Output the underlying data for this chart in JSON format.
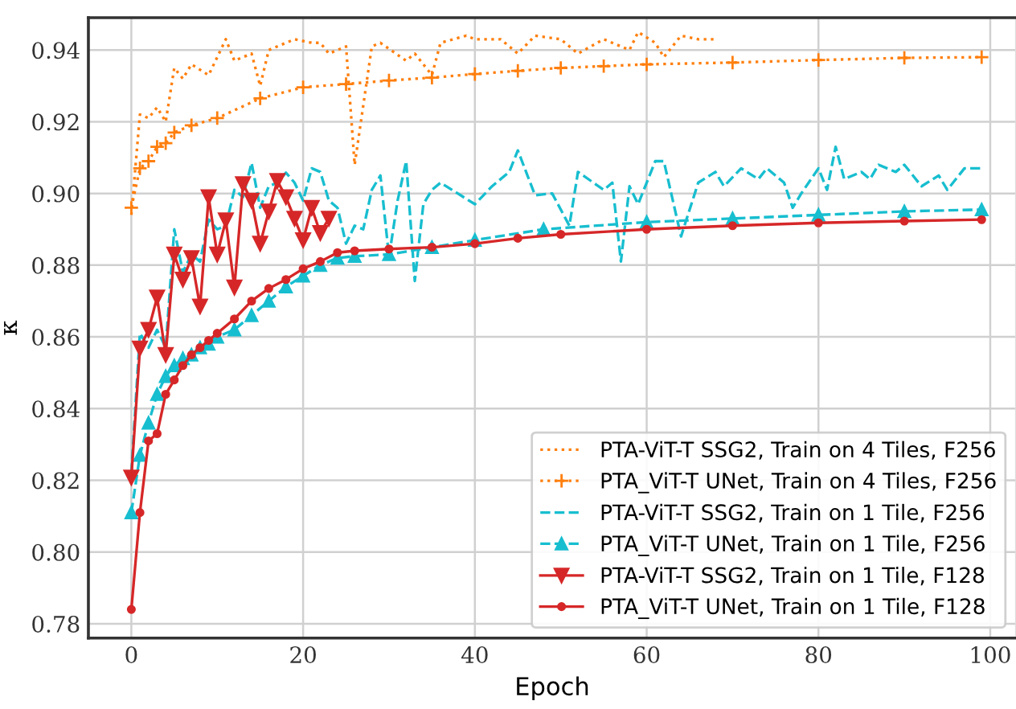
{
  "chart_data": {
    "type": "line",
    "xlabel": "Epoch",
    "ylabel": "κ",
    "xlim": [
      -5,
      103
    ],
    "ylim": [
      0.776,
      0.949
    ],
    "xticks": [
      0,
      20,
      40,
      60,
      80,
      100
    ],
    "yticks": [
      0.78,
      {
        "value": 0.8,
        "label": "0.80"
      },
      0.82,
      0.84,
      0.86,
      0.88,
      {
        "value": 0.9,
        "label": "0.90"
      },
      0.92,
      0.94
    ],
    "grid": true,
    "legend": "bottom right",
    "series": [
      {
        "name": "PTA-ViT-T SSG2, Train on 4 Tiles, F256",
        "color": "#ff7f0e",
        "line_style": "dotted",
        "marker": "none",
        "x": [
          0,
          1,
          2,
          3,
          4,
          5,
          6,
          7,
          9,
          11,
          12,
          14,
          15,
          16,
          19,
          21,
          22,
          23,
          25,
          26,
          28,
          29,
          32,
          33,
          35,
          36,
          39,
          40,
          43,
          45,
          47,
          50,
          52,
          55,
          58,
          59,
          61,
          62,
          64,
          66,
          68
        ],
        "values": [
          0.894,
          0.922,
          0.921,
          0.924,
          0.92,
          0.935,
          0.932,
          0.936,
          0.933,
          0.943,
          0.937,
          0.939,
          0.93,
          0.94,
          0.943,
          0.942,
          0.942,
          0.939,
          0.941,
          0.908,
          0.941,
          0.942,
          0.937,
          0.939,
          0.933,
          0.942,
          0.944,
          0.943,
          0.943,
          0.939,
          0.944,
          0.943,
          0.939,
          0.943,
          0.94,
          0.945,
          0.942,
          0.938,
          0.944,
          0.943,
          0.943
        ]
      },
      {
        "name": "PTA_ViT-T UNet, Train on 4 Tiles, F256",
        "color": "#ff7f0e",
        "line_style": "dotted",
        "marker": "cross",
        "x": [
          0,
          1,
          2,
          3,
          4,
          5,
          7,
          10,
          15,
          20,
          25,
          30,
          35,
          40,
          45,
          50,
          55,
          60,
          70,
          80,
          90,
          99
        ],
        "values": [
          0.896,
          0.907,
          0.909,
          0.913,
          0.914,
          0.917,
          0.919,
          0.921,
          0.9265,
          0.9296,
          0.9305,
          0.9315,
          0.9323,
          0.9333,
          0.9342,
          0.935,
          0.9355,
          0.936,
          0.9365,
          0.9372,
          0.9378,
          0.938
        ]
      },
      {
        "name": "PTA-ViT-T SSG2, Train on 1 Tile, F256",
        "color": "#17becf",
        "line_style": "dashed",
        "marker": "none",
        "x": [
          0,
          1,
          2,
          3,
          4,
          5,
          6,
          7,
          8,
          9,
          10,
          11,
          12,
          13,
          14,
          15,
          16,
          17,
          18,
          19,
          20,
          21,
          22,
          23,
          24,
          25,
          26,
          27,
          28,
          29,
          30,
          31,
          32,
          33,
          34,
          35,
          36,
          40,
          42,
          44,
          45,
          47,
          49,
          51,
          52,
          55,
          56,
          57,
          58,
          59,
          61,
          62,
          64,
          66,
          68,
          69,
          71,
          73,
          74,
          76,
          77,
          78,
          80,
          81,
          82,
          83,
          85,
          86,
          87,
          89,
          90,
          92,
          94,
          95,
          97,
          99
        ],
        "values": [
          0.822,
          0.861,
          0.857,
          0.862,
          0.857,
          0.89,
          0.878,
          0.883,
          0.881,
          0.8927,
          0.89,
          0.891,
          0.901,
          0.899,
          0.9085,
          0.896,
          0.902,
          0.903,
          0.9058,
          0.903,
          0.898,
          0.907,
          0.906,
          0.898,
          0.896,
          0.886,
          0.891,
          0.89,
          0.901,
          0.905,
          0.8823,
          0.898,
          0.909,
          0.8756,
          0.897,
          0.901,
          0.903,
          0.897,
          0.902,
          0.906,
          0.912,
          0.8995,
          0.9,
          0.891,
          0.906,
          0.901,
          0.903,
          0.881,
          0.902,
          0.897,
          0.909,
          0.909,
          0.888,
          0.903,
          0.906,
          0.902,
          0.907,
          0.904,
          0.907,
          0.903,
          0.896,
          0.9,
          0.907,
          0.901,
          0.913,
          0.904,
          0.906,
          0.904,
          0.908,
          0.906,
          0.908,
          0.902,
          0.905,
          0.901,
          0.907,
          0.907
        ]
      },
      {
        "name": "PTA_ViT-T UNet, Train on 1 Tile, F256",
        "color": "#17becf",
        "line_style": "dashed",
        "marker": "triangle",
        "x": [
          0,
          1,
          2,
          3,
          4,
          5,
          6,
          7,
          8,
          9,
          10,
          12,
          14,
          16,
          18,
          20,
          22,
          24,
          26,
          30,
          35,
          40,
          48,
          60,
          70,
          80,
          90,
          99
        ],
        "values": [
          0.811,
          0.827,
          0.836,
          0.844,
          0.849,
          0.852,
          0.854,
          0.855,
          0.857,
          0.858,
          0.86,
          0.862,
          0.866,
          0.87,
          0.874,
          0.877,
          0.88,
          0.882,
          0.8825,
          0.883,
          0.885,
          0.887,
          0.89,
          0.892,
          0.893,
          0.894,
          0.895,
          0.8955
        ]
      },
      {
        "name": "PTA-ViT-T SSG2, Train on 1 Tile, F128",
        "color": "#d62728",
        "line_style": "solid",
        "marker": "triangle_down",
        "x": [
          0,
          1,
          2,
          3,
          4,
          5,
          6,
          7,
          8,
          9,
          10,
          11,
          12,
          13,
          14,
          15,
          16,
          17,
          18,
          19,
          20,
          21,
          22,
          23
        ],
        "values": [
          0.8208,
          0.8568,
          0.862,
          0.871,
          0.855,
          0.883,
          0.876,
          0.882,
          0.8685,
          0.899,
          0.883,
          0.8925,
          0.8738,
          0.9026,
          0.898,
          0.886,
          0.895,
          0.9035,
          0.899,
          0.893,
          0.887,
          0.896,
          0.889,
          0.893
        ]
      },
      {
        "name": "PTA_ViT-T UNet, Train on 1 Tile, F128",
        "color": "#d62728",
        "line_style": "solid",
        "marker": "circle",
        "x": [
          0,
          1,
          2,
          3,
          4,
          5,
          6,
          7,
          8,
          9,
          10,
          12,
          14,
          16,
          18,
          20,
          22,
          24,
          26,
          30,
          35,
          40,
          45,
          50,
          60,
          70,
          80,
          90,
          99
        ],
        "values": [
          0.784,
          0.811,
          0.831,
          0.833,
          0.844,
          0.848,
          0.852,
          0.855,
          0.857,
          0.859,
          0.861,
          0.865,
          0.87,
          0.8735,
          0.876,
          0.879,
          0.881,
          0.8835,
          0.884,
          0.8845,
          0.885,
          0.886,
          0.8875,
          0.8886,
          0.89,
          0.891,
          0.8918,
          0.8923,
          0.8927
        ]
      }
    ]
  }
}
